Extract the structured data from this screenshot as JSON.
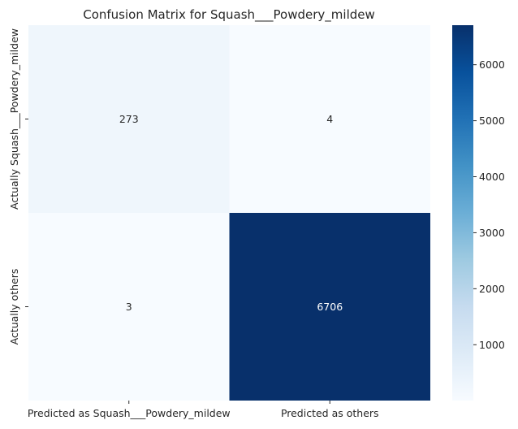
{
  "chart_data": {
    "type": "heatmap",
    "title": "Confusion Matrix for Squash___Powdery_mildew",
    "x_categories": [
      "Predicted as Squash___Powdery_mildew",
      "Predicted as others"
    ],
    "y_categories": [
      "Actually Squash___Powdery_mildew",
      "Actually others"
    ],
    "values": [
      [
        273,
        4
      ],
      [
        3,
        6706
      ]
    ],
    "colormap": "Blues",
    "color_range": [
      3,
      6706
    ],
    "colorbar_ticks": [
      1000,
      2000,
      3000,
      4000,
      5000,
      6000
    ],
    "grid": false,
    "colorbar_position": "right"
  }
}
